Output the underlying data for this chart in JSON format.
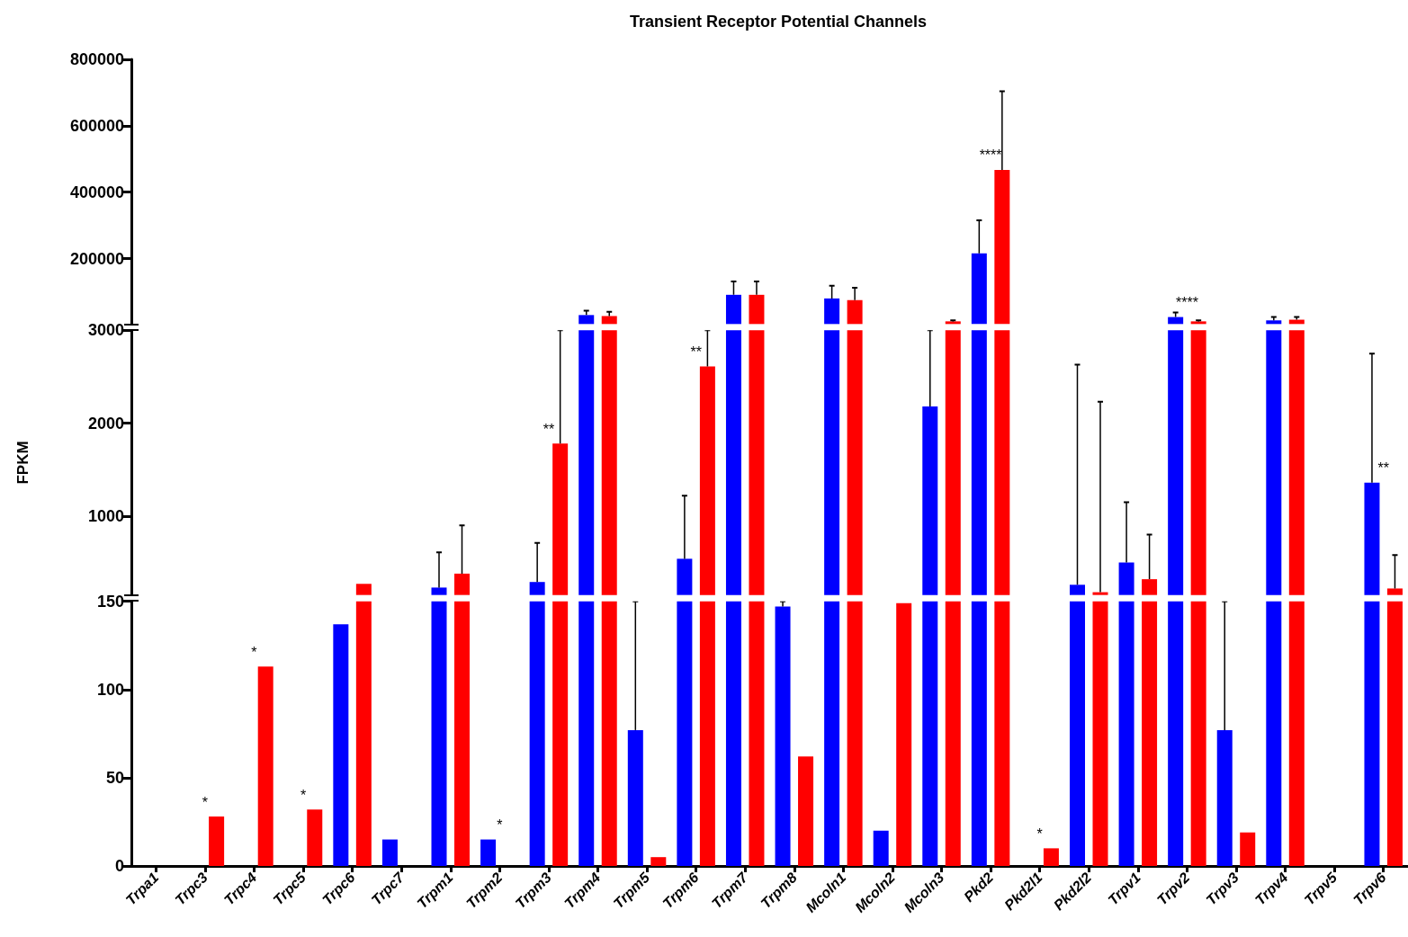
{
  "chart_data": [
    {
      "type": "bar",
      "title": "Transient Receptor Potential Channels",
      "tick_labels": "y",
      "categories": [
        "Trpa1",
        "Trpc3",
        "Trpc4",
        "Trpc5",
        "Trpc6",
        "Trpc7",
        "Trpm1",
        "Trpm2",
        "Trpm3",
        "Trpm4",
        "Trpm5",
        "Trpm6",
        "Trpm7",
        "Trpm8",
        "Mcoln1",
        "Mcoln2",
        "Mcoln3",
        "Pkd2",
        "Pkd2l1",
        "Pkd2l2",
        "Trpv1",
        "Trpv2",
        "Trpv3",
        "Trpv4",
        "Trpv5",
        "Trpv6"
      ],
      "series": [
        {
          "color": "#0000ff",
          "values": [
            null,
            null,
            null,
            null,
            null,
            null,
            null,
            null,
            null,
            30000,
            null,
            null,
            91000,
            null,
            80000,
            null,
            null,
            216000,
            null,
            null,
            null,
            24000,
            null,
            14000,
            null,
            null
          ],
          "errors": [
            null,
            null,
            null,
            null,
            null,
            null,
            null,
            null,
            null,
            [
              30000,
              43000
            ],
            null,
            null,
            [
              91000,
              131000
            ],
            null,
            [
              80000,
              118000
            ],
            null,
            null,
            [
              216000,
              315000
            ],
            null,
            null,
            null,
            [
              24000,
              38000
            ],
            null,
            [
              14000,
              24000
            ],
            null,
            null
          ]
        },
        {
          "color": "#ff0000",
          "values": [
            null,
            null,
            null,
            null,
            null,
            null,
            null,
            null,
            null,
            27000,
            null,
            null,
            91000,
            null,
            75000,
            null,
            11000,
            467000,
            null,
            null,
            null,
            11000,
            null,
            16000,
            null,
            null
          ],
          "errors": [
            null,
            null,
            null,
            null,
            null,
            null,
            null,
            null,
            null,
            [
              27000,
              40000
            ],
            null,
            null,
            [
              91000,
              131000
            ],
            null,
            [
              75000,
              112000
            ],
            null,
            [
              11000,
              14000
            ],
            [
              467000,
              704000
            ],
            null,
            null,
            null,
            [
              11000,
              14000
            ],
            null,
            [
              16000,
              24000
            ],
            null,
            null
          ]
        }
      ],
      "ylim": [
        3000,
        800000
      ],
      "yticks": [
        200000,
        400000,
        600000,
        800000
      ],
      "annotations": [
        {
          "text": "****",
          "x": "Pkd2",
          "y": 467000
        },
        {
          "text": "****",
          "x": "Trpv2",
          "y": 24000
        }
      ]
    },
    {
      "type": "bar",
      "ylabel": "FPKM",
      "tick_labels": "y",
      "categories": [
        "Trpa1",
        "Trpc3",
        "Trpc4",
        "Trpc5",
        "Trpc6",
        "Trpc7",
        "Trpm1",
        "Trpm2",
        "Trpm3",
        "Trpm4",
        "Trpm5",
        "Trpm6",
        "Trpm7",
        "Trpm8",
        "Mcoln1",
        "Mcoln2",
        "Mcoln3",
        "Pkd2",
        "Pkd2l1",
        "Pkd2l2",
        "Trpv1",
        "Trpv2",
        "Trpv3",
        "Trpv4",
        "Trpv5",
        "Trpv6"
      ],
      "series": [
        {
          "color": "#0000ff",
          "values": [
            null,
            null,
            null,
            null,
            null,
            null,
            230,
            null,
            290,
            3000,
            null,
            540,
            3000,
            null,
            3000,
            null,
            2180,
            3000,
            null,
            260,
            500,
            3000,
            null,
            3000,
            null,
            1360
          ],
          "errors": [
            null,
            null,
            null,
            null,
            null,
            null,
            [
              230,
              610
            ],
            null,
            [
              290,
              710
            ],
            null,
            null,
            [
              540,
              1220
            ],
            null,
            null,
            null,
            null,
            [
              2180,
              3000
            ],
            null,
            null,
            [
              260,
              2630
            ],
            [
              500,
              1150
            ],
            null,
            null,
            null,
            null,
            [
              1360,
              2750
            ]
          ]
        },
        {
          "color": "#ff0000",
          "values": [
            null,
            null,
            null,
            null,
            270,
            null,
            380,
            null,
            1780,
            3000,
            null,
            2610,
            3000,
            null,
            3000,
            null,
            3000,
            3000,
            null,
            180,
            320,
            3000,
            null,
            3000,
            null,
            220
          ],
          "errors": [
            null,
            null,
            null,
            null,
            null,
            null,
            [
              380,
              900
            ],
            null,
            [
              1780,
              3000
            ],
            null,
            null,
            [
              2610,
              3000
            ],
            null,
            null,
            null,
            null,
            null,
            null,
            null,
            [
              180,
              2230
            ],
            [
              320,
              800
            ],
            null,
            null,
            null,
            null,
            [
              220,
              580
            ]
          ]
        }
      ],
      "ylim": [
        150,
        3000
      ],
      "yticks": [
        1000,
        2000,
        3000
      ],
      "annotations": [
        {
          "text": "**",
          "x": "Trpm3",
          "y": 1780
        },
        {
          "text": "**",
          "x": "Trpm6",
          "y": 2610
        },
        {
          "text": "**",
          "x": "Trpv6",
          "y": 1360
        }
      ]
    },
    {
      "type": "bar",
      "categories": [
        "Trpa1",
        "Trpc3",
        "Trpc4",
        "Trpc5",
        "Trpc6",
        "Trpc7",
        "Trpm1",
        "Trpm2",
        "Trpm3",
        "Trpm4",
        "Trpm5",
        "Trpm6",
        "Trpm7",
        "Trpm8",
        "Mcoln1",
        "Mcoln2",
        "Mcoln3",
        "Pkd2",
        "Pkd2l1",
        "Pkd2l2",
        "Trpv1",
        "Trpv2",
        "Trpv3",
        "Trpv4",
        "Trpv5",
        "Trpv6"
      ],
      "series": [
        {
          "color": "#0000ff",
          "values": [
            null,
            null,
            null,
            null,
            137,
            15,
            150,
            15,
            150,
            150,
            77,
            150,
            150,
            147,
            150,
            20,
            150,
            150,
            null,
            150,
            150,
            150,
            77,
            150,
            null,
            150
          ],
          "errors": [
            null,
            null,
            null,
            null,
            null,
            null,
            null,
            null,
            null,
            null,
            [
              77,
              150
            ],
            null,
            null,
            [
              147,
              150
            ],
            null,
            null,
            null,
            null,
            null,
            null,
            null,
            null,
            [
              77,
              150
            ],
            null,
            null,
            null
          ]
        },
        {
          "color": "#ff0000",
          "values": [
            null,
            28,
            113,
            32,
            150,
            null,
            150,
            null,
            150,
            150,
            5,
            150,
            150,
            62,
            150,
            149,
            150,
            150,
            10,
            150,
            150,
            150,
            19,
            150,
            null,
            150
          ],
          "errors": [
            null,
            null,
            null,
            null,
            null,
            null,
            null,
            null,
            null,
            null,
            null,
            null,
            null,
            null,
            null,
            null,
            null,
            null,
            null,
            null,
            null,
            null,
            null,
            null,
            null,
            null
          ]
        }
      ],
      "ylim": [
        0,
        150
      ],
      "yticks": [
        0,
        50,
        100,
        150
      ],
      "annotations": [
        {
          "text": "*",
          "x": "Trpc3",
          "y": 28
        },
        {
          "text": "*",
          "x": "Trpc4",
          "y": 113
        },
        {
          "text": "*",
          "x": "Trpc5",
          "y": 32
        },
        {
          "text": "*",
          "x": "Trpm2",
          "y": 15
        },
        {
          "text": "*",
          "x": "Pkd2l1",
          "y": 10
        }
      ]
    }
  ]
}
